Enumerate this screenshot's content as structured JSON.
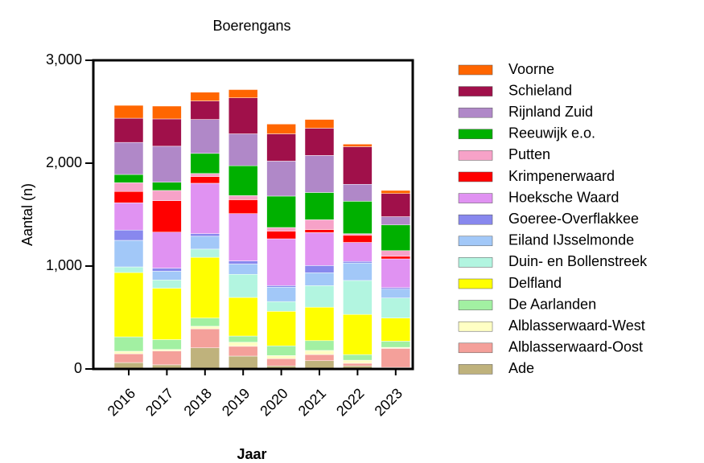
{
  "chart_data": {
    "type": "stacked_bar",
    "title": "Boerengans",
    "x_label": "Jaar",
    "y_label": "Aantal (n)",
    "categories": [
      "2016",
      "2017",
      "2018",
      "2019",
      "2020",
      "2021",
      "2022",
      "2023"
    ],
    "ylim": [
      0,
      3000
    ],
    "yticks": [
      0,
      {
        "value": 1000,
        "label": "1,000"
      },
      {
        "value": 2000,
        "label": "2,000"
      },
      {
        "value": 3000,
        "label": "3,000"
      }
    ],
    "series": [
      {
        "name": "Ade",
        "color": "#bfb27c",
        "values": [
          62,
          40,
          205,
          125,
          30,
          80,
          30,
          15
        ]
      },
      {
        "name": "Alblasserwaard-Oost",
        "color": "#f4a09a",
        "values": [
          85,
          135,
          185,
          95,
          70,
          60,
          25,
          185
        ]
      },
      {
        "name": "Alblasserwaard-West",
        "color": "#ffffc4",
        "values": [
          25,
          15,
          25,
          40,
          30,
          40,
          30,
          10
        ]
      },
      {
        "name": "De Aarlanden",
        "color": "#a2f0a2",
        "values": [
          140,
          95,
          80,
          60,
          95,
          95,
          55,
          60
        ]
      },
      {
        "name": "Delfland",
        "color": "#ffff00",
        "values": [
          625,
          500,
          590,
          375,
          335,
          325,
          390,
          225
        ]
      },
      {
        "name": "Duin- en Bollenstreek",
        "color": "#b2f5e0",
        "values": [
          55,
          80,
          80,
          225,
          95,
          210,
          330,
          195
        ]
      },
      {
        "name": "Eiland IJsselmonde",
        "color": "#a2c8f8",
        "values": [
          258,
          85,
          125,
          100,
          140,
          125,
          170,
          85
        ]
      },
      {
        "name": "Goeree-Overflakkee",
        "color": "#8888ee",
        "values": [
          100,
          30,
          25,
          30,
          15,
          70,
          15,
          15
        ]
      },
      {
        "name": "Hoeksche Waard",
        "color": "#e092f2",
        "values": [
          265,
          350,
          490,
          460,
          455,
          320,
          185,
          280
        ]
      },
      {
        "name": "Krimpenerwaard",
        "color": "#ff0000",
        "values": [
          110,
          305,
          65,
          135,
          75,
          30,
          70,
          25
        ]
      },
      {
        "name": "Putten",
        "color": "#f7a2c8",
        "values": [
          85,
          100,
          30,
          40,
          35,
          95,
          15,
          55
        ]
      },
      {
        "name": "Reeuwijk e.o.",
        "color": "#00b000",
        "values": [
          80,
          80,
          195,
          290,
          305,
          265,
          315,
          250
        ]
      },
      {
        "name": "Rijnland Zuid",
        "color": "#b088c8",
        "values": [
          312,
          350,
          330,
          310,
          340,
          360,
          165,
          80
        ]
      },
      {
        "name": "Schieland",
        "color": "#a0104a",
        "values": [
          235,
          265,
          180,
          350,
          265,
          265,
          365,
          225
        ]
      },
      {
        "name": "Voorne",
        "color": "#ff6600",
        "values": [
          125,
          125,
          85,
          80,
          95,
          85,
          25,
          30
        ]
      }
    ]
  }
}
